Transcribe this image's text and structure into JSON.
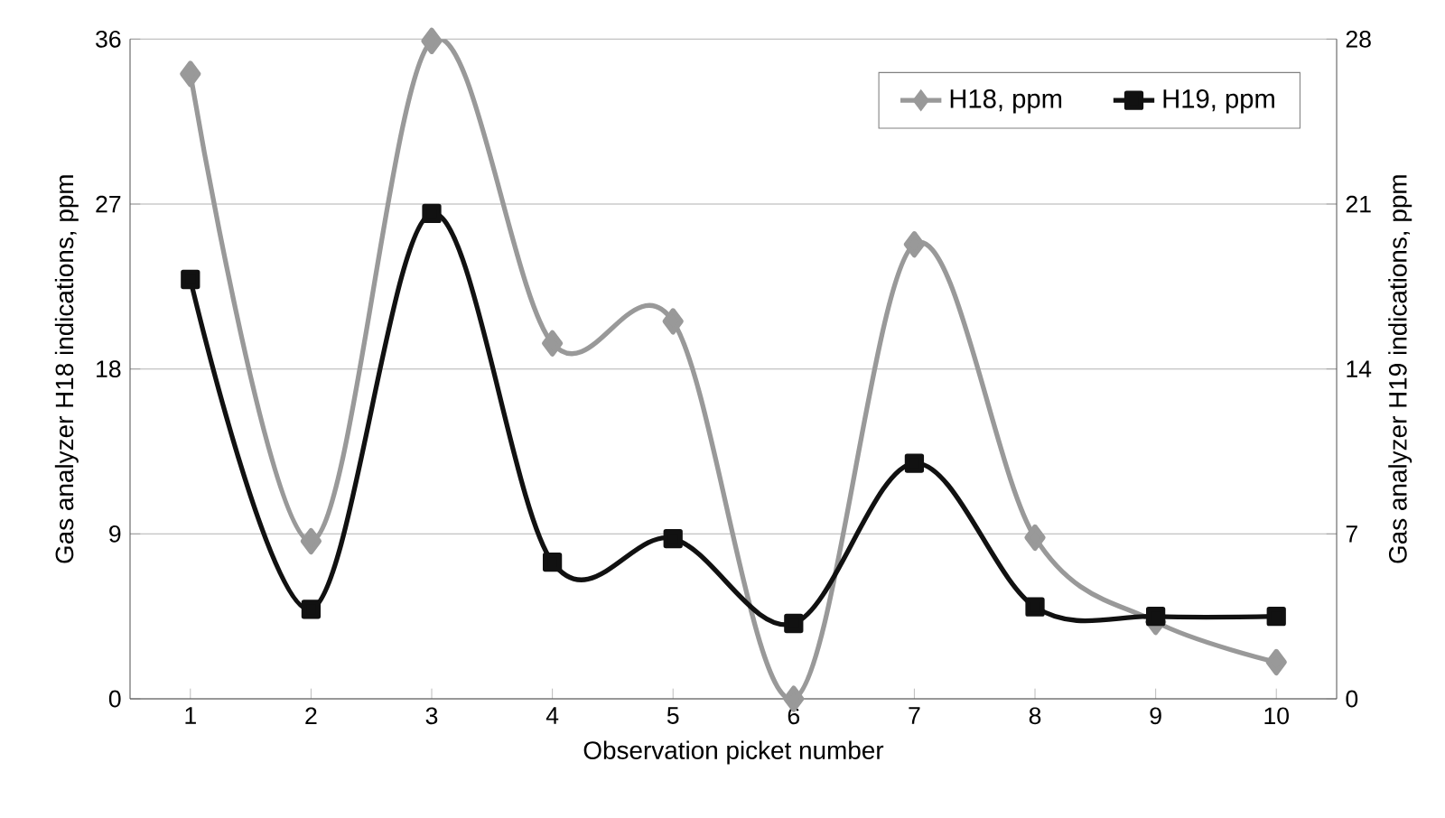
{
  "chart_data": {
    "type": "line",
    "xlabel": "Observation picket number",
    "ylabel": "Gas analyzer H18 indications, ppm",
    "y2label": "Gas analyzer H19 indications, ppm",
    "categories": [
      "1",
      "2",
      "3",
      "4",
      "5",
      "6",
      "7",
      "8",
      "9",
      "10"
    ],
    "series": [
      {
        "name": "H18, ppm",
        "color": "#999999",
        "marker": "diamond",
        "values": [
          34.1,
          8.6,
          35.9,
          19.4,
          20.6,
          0,
          24.8,
          8.8,
          4.2,
          2.0
        ]
      },
      {
        "name": "H19, ppm",
        "color": "#111111",
        "marker": "square",
        "axis": "y2",
        "values": [
          17.8,
          3.8,
          20.6,
          5.8,
          6.8,
          3.2,
          10.0,
          3.9,
          3.5,
          3.5
        ]
      }
    ],
    "ylim": [
      0,
      36
    ],
    "yticks": [
      0,
      9,
      18,
      27,
      36
    ],
    "y2lim": [
      0,
      28
    ],
    "y2ticks": [
      0,
      7,
      14,
      21,
      28
    ],
    "grid": "y",
    "legend": "top right"
  }
}
